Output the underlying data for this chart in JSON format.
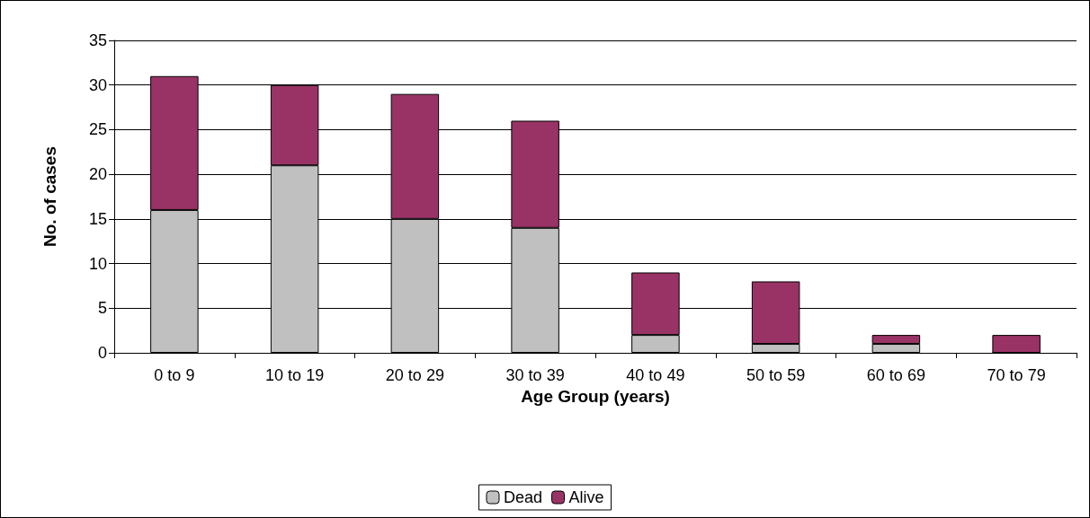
{
  "chart_data": {
    "type": "bar",
    "xlabel": "Age Group (years)",
    "ylabel": "No. of cases",
    "categories": [
      "0 to 9",
      "10 to 19",
      "20 to 29",
      "30 to 39",
      "40 to 49",
      "50 to 59",
      "60 to 69",
      "70 to 79"
    ],
    "series": [
      {
        "name": "Dead",
        "color": "#c0c0c0",
        "values": [
          16,
          21,
          15,
          14,
          2,
          1,
          1,
          0
        ]
      },
      {
        "name": "Alive",
        "color": "#993366",
        "values": [
          15,
          9,
          14,
          12,
          7,
          7,
          1,
          2
        ]
      }
    ],
    "stacked": true,
    "ylim": [
      0,
      35
    ],
    "yticks": [
      0,
      5,
      10,
      15,
      20,
      25,
      30,
      35
    ],
    "grid": "y",
    "legend": "bottom"
  }
}
